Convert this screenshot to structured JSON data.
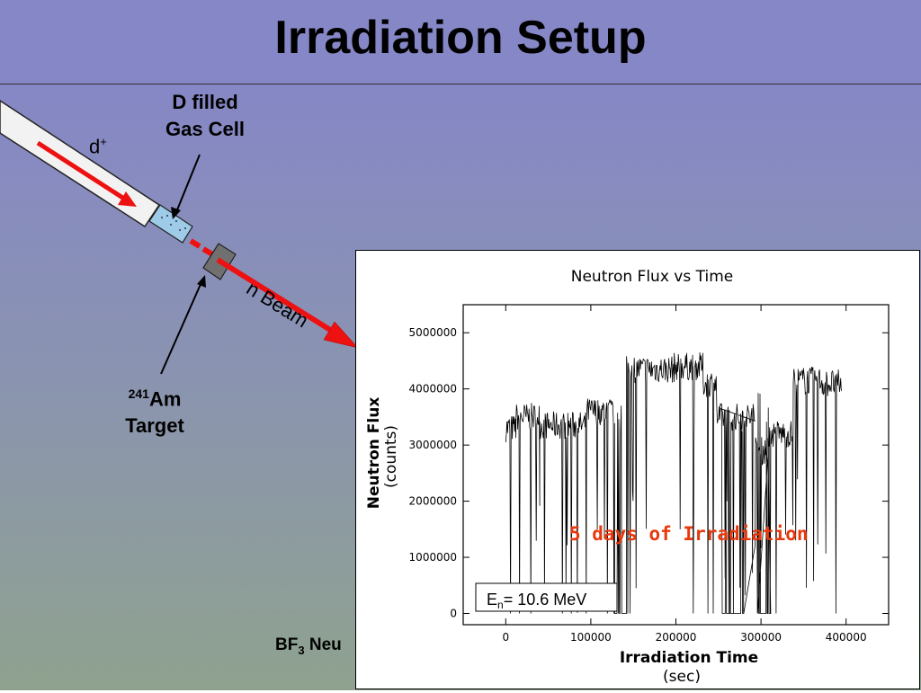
{
  "slide": {
    "title": "Irradiation Setup"
  },
  "diagram": {
    "gas_cell_label_line1": "D filled",
    "gas_cell_label_line2": "Gas Cell",
    "deuteron_label": "d",
    "deuteron_charge": "+",
    "beam_label": "n Beam",
    "target_mass_number": "241",
    "target_element": "Am",
    "target_label": "Target",
    "detector_label_start": "BF",
    "detector_subscript": "3",
    "detector_label_rest": " Neu",
    "colors": {
      "beam": "#ee1111",
      "gas": "#9ecbe8",
      "target": "#707070"
    }
  },
  "chart_data": {
    "type": "line",
    "title": "Neutron Flux vs Time",
    "xlabel": "Irradiation Time",
    "xlabel_unit": "(sec)",
    "ylabel": "Neutron Flux",
    "ylabel_unit": "(counts)",
    "xlim": [
      -50000,
      450000
    ],
    "ylim": [
      -200000,
      5500000
    ],
    "x_ticks": [
      0,
      100000,
      200000,
      300000,
      400000
    ],
    "x_tick_labels": [
      "0",
      "100000",
      "200000",
      "300000",
      "400000"
    ],
    "y_ticks": [
      0,
      1000000,
      2000000,
      3000000,
      4000000,
      5000000
    ],
    "y_tick_labels": [
      "0",
      "1000000",
      "2000000",
      "3000000",
      "4000000",
      "5000000"
    ],
    "annotation": "5 days of Irradiation",
    "energy_label_prefix": "E",
    "energy_label_sub": "n",
    "energy_label_rest": "= 10.6 MeV",
    "segments": [
      {
        "x_start": 0,
        "x_end": 12000,
        "level": 3300000
      },
      {
        "x_start": 12000,
        "x_end": 40000,
        "level": 3500000
      },
      {
        "x_start": 40000,
        "x_end": 95000,
        "level": 3350000
      },
      {
        "x_start": 95000,
        "x_end": 128000,
        "level": 3600000
      },
      {
        "x_start": 142000,
        "x_end": 198000,
        "level": 4350000
      },
      {
        "x_start": 198000,
        "x_end": 232000,
        "level": 4400000
      },
      {
        "x_start": 232000,
        "x_end": 248000,
        "level": 4100000
      },
      {
        "x_start": 248000,
        "x_end": 293000,
        "level": 3500000
      },
      {
        "x_start": 293000,
        "x_end": 308000,
        "level": 2900000
      },
      {
        "x_start": 308000,
        "x_end": 338000,
        "level": 3200000
      },
      {
        "x_start": 338000,
        "x_end": 372000,
        "level": 4150000
      },
      {
        "x_start": 372000,
        "x_end": 395000,
        "level": 4100000
      }
    ],
    "drops": [
      {
        "x_start": 128000,
        "x_end": 142000,
        "level": 0
      },
      {
        "x_start": 253000,
        "x_end": 262000,
        "level": 0
      },
      {
        "x_start": 272000,
        "x_end": 280000,
        "level": 0
      },
      {
        "x_start": 296000,
        "x_end": 312000,
        "level": 0
      }
    ],
    "color": "#000000"
  }
}
